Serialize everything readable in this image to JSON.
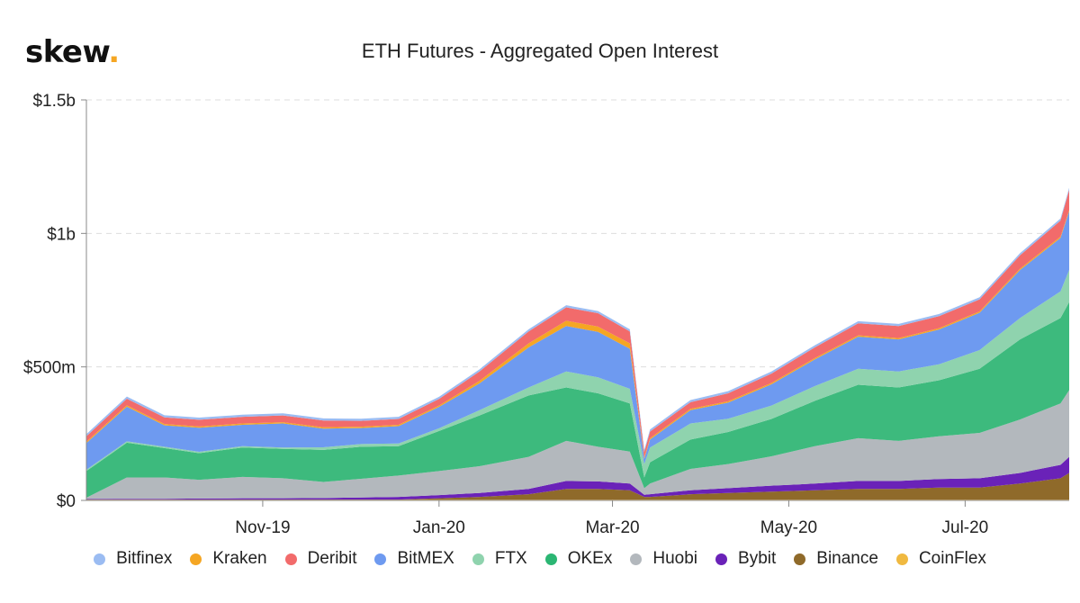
{
  "brand": {
    "logo_text": "skew",
    "logo_dot": "."
  },
  "chart_data": {
    "type": "area",
    "stacked": true,
    "title": "ETH Futures - Aggregated Open Interest",
    "xlabel": "",
    "ylabel": "",
    "ylim": [
      0,
      1500
    ],
    "y_unit": "millions USD",
    "y_ticks": [
      {
        "value": 0,
        "label": "$0"
      },
      {
        "value": 500,
        "label": "$500m"
      },
      {
        "value": 1000,
        "label": "$1b"
      },
      {
        "value": 1500,
        "label": "$1.5b"
      }
    ],
    "x_ticks": [
      {
        "date": "2019-11-01",
        "label": "Nov-19"
      },
      {
        "date": "2020-01-01",
        "label": "Jan-20"
      },
      {
        "date": "2020-03-01",
        "label": "Mar-20"
      },
      {
        "date": "2020-05-01",
        "label": "May-20"
      },
      {
        "date": "2020-07-01",
        "label": "Jul-20"
      }
    ],
    "x_range": [
      "2019-09-01",
      "2020-08-06"
    ],
    "grid": "horizontal dashed",
    "legend_position": "bottom",
    "x": [
      "2019-09-01",
      "2019-09-15",
      "2019-09-28",
      "2019-10-10",
      "2019-10-25",
      "2019-11-08",
      "2019-11-22",
      "2019-12-05",
      "2019-12-18",
      "2020-01-01",
      "2020-01-15",
      "2020-02-01",
      "2020-02-14",
      "2020-02-25",
      "2020-03-07",
      "2020-03-12",
      "2020-03-14",
      "2020-03-28",
      "2020-04-10",
      "2020-04-25",
      "2020-05-10",
      "2020-05-25",
      "2020-06-08",
      "2020-06-22",
      "2020-07-06",
      "2020-07-20",
      "2020-08-03",
      "2020-08-06"
    ],
    "series": [
      {
        "name": "CoinFlex",
        "color": "#f0b940",
        "values": [
          3,
          3,
          3,
          3,
          3,
          3,
          3,
          3,
          3,
          3,
          3,
          3,
          3,
          3,
          3,
          3,
          3,
          3,
          3,
          3,
          3,
          3,
          3,
          3,
          3,
          3,
          3,
          3
        ]
      },
      {
        "name": "Binance",
        "color": "#8f6a2a",
        "values": [
          0,
          0,
          0,
          0,
          0,
          0,
          0,
          0,
          0,
          5,
          10,
          20,
          40,
          40,
          35,
          10,
          10,
          20,
          25,
          30,
          35,
          40,
          40,
          45,
          45,
          60,
          80,
          100
        ]
      },
      {
        "name": "Bybit",
        "color": "#6a22b8",
        "values": [
          2,
          3,
          3,
          4,
          5,
          5,
          6,
          8,
          10,
          12,
          15,
          20,
          30,
          28,
          25,
          8,
          10,
          15,
          18,
          22,
          25,
          30,
          30,
          32,
          35,
          40,
          50,
          60
        ]
      },
      {
        "name": "Huobi",
        "color": "#b3b8bd",
        "values": [
          5,
          80,
          80,
          70,
          80,
          75,
          60,
          70,
          80,
          90,
          100,
          120,
          150,
          130,
          120,
          25,
          40,
          80,
          90,
          110,
          140,
          160,
          150,
          160,
          170,
          200,
          230,
          250
        ]
      },
      {
        "name": "OKEx",
        "color": "#3dba7d",
        "values": [
          100,
          130,
          110,
          100,
          110,
          110,
          120,
          120,
          110,
          150,
          190,
          230,
          200,
          200,
          180,
          40,
          80,
          110,
          120,
          140,
          170,
          200,
          200,
          210,
          240,
          300,
          320,
          330
        ]
      },
      {
        "name": "FTX",
        "color": "#8fd3ae",
        "values": [
          5,
          5,
          5,
          5,
          5,
          5,
          10,
          10,
          10,
          10,
          20,
          30,
          60,
          60,
          55,
          50,
          55,
          60,
          50,
          50,
          55,
          60,
          60,
          60,
          70,
          80,
          100,
          120
        ]
      },
      {
        "name": "BitMEX",
        "color": "#6e9af0",
        "values": [
          100,
          130,
          80,
          90,
          80,
          90,
          70,
          60,
          65,
          80,
          100,
          150,
          170,
          170,
          150,
          20,
          30,
          50,
          60,
          80,
          100,
          120,
          120,
          130,
          140,
          180,
          200,
          220
        ]
      },
      {
        "name": "Kraken",
        "color": "#f5a623",
        "values": [
          5,
          5,
          5,
          5,
          5,
          5,
          5,
          5,
          5,
          5,
          10,
          15,
          20,
          20,
          20,
          5,
          5,
          5,
          5,
          5,
          5,
          5,
          5,
          5,
          5,
          5,
          5,
          5
        ]
      },
      {
        "name": "Deribit",
        "color": "#f26b6b",
        "values": [
          20,
          25,
          25,
          25,
          25,
          25,
          25,
          22,
          22,
          25,
          35,
          45,
          50,
          50,
          45,
          20,
          25,
          25,
          30,
          35,
          40,
          45,
          45,
          45,
          45,
          50,
          60,
          75
        ]
      },
      {
        "name": "Bitfinex",
        "color": "#9bbcf2",
        "values": [
          8,
          8,
          8,
          8,
          8,
          8,
          8,
          8,
          8,
          8,
          8,
          8,
          8,
          8,
          8,
          8,
          8,
          8,
          8,
          8,
          8,
          8,
          8,
          8,
          8,
          8,
          8,
          8
        ]
      }
    ]
  },
  "legend": [
    {
      "name": "Bitfinex",
      "color": "#9bbcf2"
    },
    {
      "name": "Kraken",
      "color": "#f5a623"
    },
    {
      "name": "Deribit",
      "color": "#f26b6b"
    },
    {
      "name": "BitMEX",
      "color": "#6e9af0"
    },
    {
      "name": "FTX",
      "color": "#8fd3ae"
    },
    {
      "name": "OKEx",
      "color": "#2bb673"
    },
    {
      "name": "Huobi",
      "color": "#b3b8bd"
    },
    {
      "name": "Bybit",
      "color": "#6a22b8"
    },
    {
      "name": "Binance",
      "color": "#8f6a2a"
    },
    {
      "name": "CoinFlex",
      "color": "#f0b940"
    }
  ]
}
